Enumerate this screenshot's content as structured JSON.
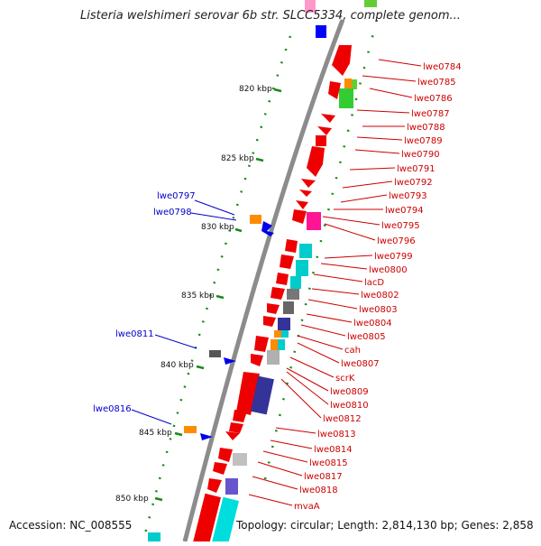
{
  "title": "Listeria welshimeri serovar 6b str. SLCC5334, complete genom...",
  "accession": "Accession: NC_008555",
  "topology": "Topology: circular; Length: 2,814,130 bp; Genes: 2,858",
  "colors": {
    "backbone": "#8c8c8c",
    "tick": "#1a8a1a",
    "right_label": "#cc0000",
    "left_label": "#0000cc"
  },
  "kbp_labels": [
    "820 kbp",
    "825 kbp",
    "830 kbp",
    "835 kbp",
    "840 kbp",
    "845 kbp",
    "850 kbp"
  ],
  "right_labels": [
    "lwe0784",
    "lwe0785",
    "lwe0786",
    "lwe0787",
    "lwe0788",
    "lwe0789",
    "lwe0790",
    "lwe0791",
    "lwe0792",
    "lwe0793",
    "lwe0794",
    "lwe0795",
    "lwe0796",
    "lwe0799",
    "lwe0800",
    "lacD",
    "lwe0802",
    "lwe0803",
    "lwe0804",
    "lwe0805",
    "cah",
    "lwe0807",
    "scrK",
    "lwe0809",
    "lwe0810",
    "lwe0812",
    "lwe0813",
    "lwe0814",
    "lwe0815",
    "lwe0817",
    "lwe0818",
    "mvaA"
  ],
  "left_labels": [
    "lwe0797",
    "lwe0798",
    "lwe0811",
    "lwe0816"
  ]
}
